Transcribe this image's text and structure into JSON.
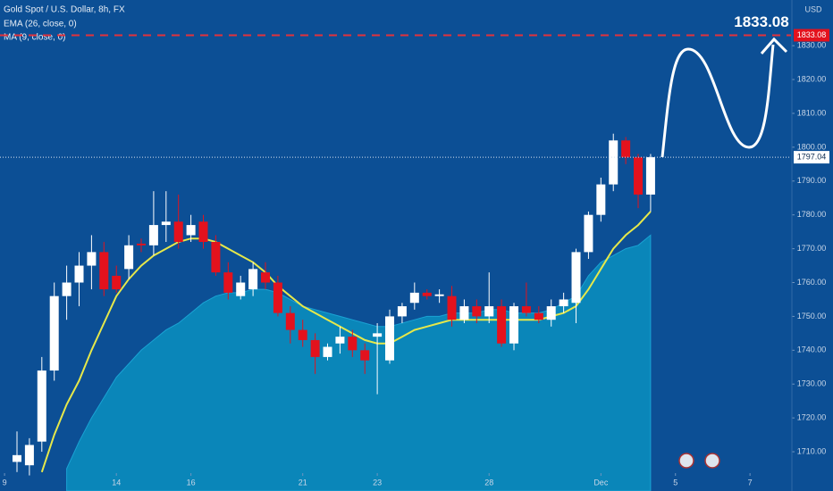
{
  "chart_data": {
    "type": "candlestick",
    "title": "Gold Spot / U.S. Dollar, 8h, FX",
    "y_label": "USD",
    "x": [
      0,
      1,
      2,
      3,
      4,
      5,
      6,
      7,
      8,
      9,
      10,
      11,
      12,
      13,
      14,
      15,
      16,
      17,
      18,
      19,
      20,
      21,
      22,
      23,
      24,
      25,
      26,
      27,
      28,
      29,
      30,
      31,
      32,
      33,
      34,
      35,
      36,
      37,
      38,
      39,
      40,
      41,
      42,
      43,
      44,
      45,
      46,
      47,
      48,
      49,
      50,
      51
    ],
    "open": [
      1707,
      1706,
      1713,
      1734,
      1756,
      1760,
      1765,
      1769,
      1762,
      1764,
      1771.5,
      1771,
      1777,
      1778,
      1774,
      1778,
      1772,
      1763,
      1756,
      1758,
      1763,
      1760,
      1751,
      1746,
      1743,
      1738,
      1742,
      1744,
      1740,
      1744,
      1737,
      1750,
      1754,
      1757,
      1756,
      1756,
      1749,
      1753,
      1750,
      1753,
      1742,
      1753,
      1751,
      1749,
      1753,
      1754,
      1769,
      1780,
      1789,
      1802,
      1797,
      1786
    ],
    "high": [
      1716,
      1714,
      1738,
      1760,
      1765,
      1769,
      1774,
      1772,
      1765,
      1774,
      1773,
      1787,
      1787,
      1786,
      1780,
      1780,
      1774,
      1766,
      1762,
      1766,
      1766,
      1762,
      1753,
      1749,
      1745,
      1742,
      1747,
      1746,
      1742,
      1748,
      1752,
      1754,
      1760,
      1758,
      1758,
      1759,
      1755,
      1755,
      1763,
      1755,
      1754,
      1760,
      1753,
      1755,
      1757,
      1770,
      1781,
      1791,
      1804,
      1803,
      1798,
      1798
    ],
    "low": [
      1704,
      1703,
      1710,
      1731,
      1749,
      1753,
      1758,
      1756,
      1757,
      1761,
      1769,
      1768,
      1772,
      1770,
      1772,
      1770,
      1762,
      1755,
      1755,
      1756,
      1758,
      1750,
      1742,
      1741,
      1733,
      1737,
      1739,
      1738,
      1733,
      1727,
      1736,
      1748,
      1752,
      1755,
      1754,
      1747,
      1748,
      1748,
      1748,
      1741,
      1740,
      1750,
      1748,
      1747,
      1751,
      1748,
      1767,
      1778,
      1787,
      1795,
      1782,
      1781
    ],
    "close": [
      1709,
      1712,
      1734,
      1756,
      1760,
      1765,
      1769,
      1758,
      1758,
      1771,
      1771,
      1777,
      1778,
      1772,
      1777,
      1772,
      1763,
      1757,
      1760,
      1764,
      1760,
      1751,
      1746,
      1743,
      1738,
      1741,
      1744,
      1740,
      1737,
      1745,
      1750,
      1753,
      1757,
      1756,
      1756.5,
      1749,
      1753,
      1750,
      1753,
      1742,
      1753,
      1751,
      1749,
      1753,
      1755,
      1769,
      1780,
      1789,
      1802,
      1797,
      1786,
      1797.04
    ],
    "colors": {
      "up": "#ffffff",
      "down": "#e3121d"
    },
    "series": [
      {
        "name": "MA (9, close, 0)",
        "color": "#0a86b9",
        "style": "area",
        "values": [
          null,
          null,
          null,
          null,
          1705,
          1713,
          1720,
          1726,
          1732,
          1736,
          1740,
          1743,
          1746,
          1748,
          1751,
          1754,
          1756,
          1757,
          1757,
          1758,
          1758,
          1757,
          1755,
          1753,
          1752,
          1751,
          1750,
          1749,
          1748,
          1747,
          1747,
          1748,
          1749,
          1750,
          1750,
          1751,
          1751,
          1751,
          1752,
          1752,
          1751,
          1751,
          1751,
          1752,
          1754,
          1756,
          1762,
          1766,
          1768,
          1770,
          1771,
          1774
        ]
      },
      {
        "name": "EMA (26, close, 0)",
        "color": "#e6e84a",
        "style": "line",
        "values": [
          null,
          null,
          1704,
          1715,
          1724,
          1731,
          1740,
          1748,
          1756,
          1761,
          1765,
          1768,
          1770,
          1772,
          1773,
          1773,
          1772,
          1770,
          1768,
          1766,
          1763,
          1759,
          1756,
          1753,
          1751,
          1749,
          1747,
          1745,
          1743,
          1742,
          1742,
          1744,
          1746,
          1747,
          1748,
          1749,
          1749,
          1749,
          1749,
          1749,
          1749,
          1749,
          1749,
          1750,
          1751,
          1753,
          1758,
          1764,
          1770,
          1774,
          1777,
          1781
        ]
      }
    ],
    "target": 1833.08,
    "xlim": [
      -1.367,
      62.3
    ],
    "xticks": [
      {
        "value": -1,
        "label": "9"
      },
      {
        "value": 8,
        "label": "14"
      },
      {
        "value": 14,
        "label": "16"
      },
      {
        "value": 23,
        "label": "21"
      },
      {
        "value": 29,
        "label": "23"
      },
      {
        "value": 38,
        "label": "28"
      },
      {
        "value": 47,
        "label": "Dec"
      },
      {
        "value": 53,
        "label": "5"
      },
      {
        "value": 59,
        "label": "7"
      }
    ],
    "ylim": [
      1698.4,
      1843.5
    ],
    "yticks": [
      {
        "value": 1710,
        "label": "1710.00"
      },
      {
        "value": 1720,
        "label": "1720.00"
      },
      {
        "value": 1730,
        "label": "1730.00"
      },
      {
        "value": 1740,
        "label": "1740.00"
      },
      {
        "value": 1750,
        "label": "1750.00"
      },
      {
        "value": 1760,
        "label": "1760.00"
      },
      {
        "value": 1770,
        "label": "1770.00"
      },
      {
        "value": 1780,
        "label": "1780.00"
      },
      {
        "value": 1790,
        "label": "1790.00"
      },
      {
        "value": 1800,
        "label": "1800.00"
      },
      {
        "value": 1810,
        "label": "1810.00"
      },
      {
        "value": 1820,
        "label": "1820.00"
      },
      {
        "value": 1830,
        "label": "1830.00"
      }
    ]
  }
}
